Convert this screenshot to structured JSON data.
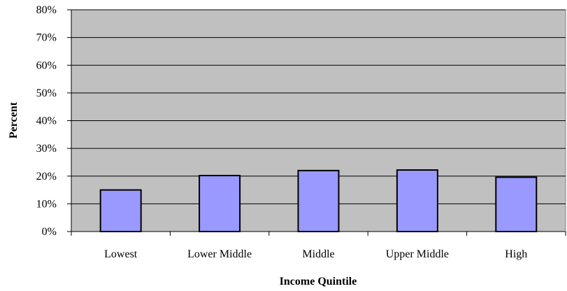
{
  "chart_data": {
    "type": "bar",
    "categories": [
      "Lowest",
      "Lower Middle",
      "Middle",
      "Upper Middle",
      "High"
    ],
    "values": [
      15,
      20.2,
      22,
      22.2,
      19.6
    ],
    "xlabel": "Income Quintile",
    "ylabel": "Percent",
    "ylim": [
      0,
      80
    ],
    "yticks": [
      "0%",
      "10%",
      "20%",
      "30%",
      "40%",
      "50%",
      "60%",
      "70%",
      "80%"
    ],
    "grid": true,
    "legend": "none",
    "colors": {
      "plot_background": "#c0c0c0",
      "bar_fill": "#9999ff",
      "bar_stroke": "#000000",
      "gridline": "#000000"
    }
  }
}
